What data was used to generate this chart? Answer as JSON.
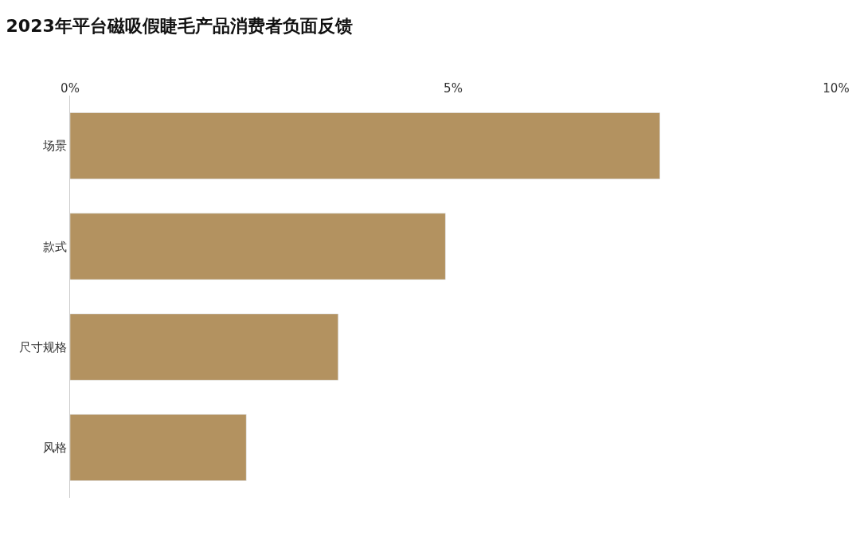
{
  "chart_data": {
    "type": "bar",
    "orientation": "horizontal",
    "title": "2023年平台磁吸假睫毛产品消费者负面反馈",
    "categories": [
      "场景",
      "款式",
      "尺寸规格",
      "风格"
    ],
    "values": [
      7.7,
      4.9,
      3.5,
      2.3
    ],
    "color": "#b39260",
    "xlim": [
      0,
      10
    ],
    "xticks": [
      {
        "value": 0,
        "label": "0%"
      },
      {
        "value": 5,
        "label": "5%"
      },
      {
        "value": 10,
        "label": "10%"
      }
    ],
    "legend": false
  }
}
